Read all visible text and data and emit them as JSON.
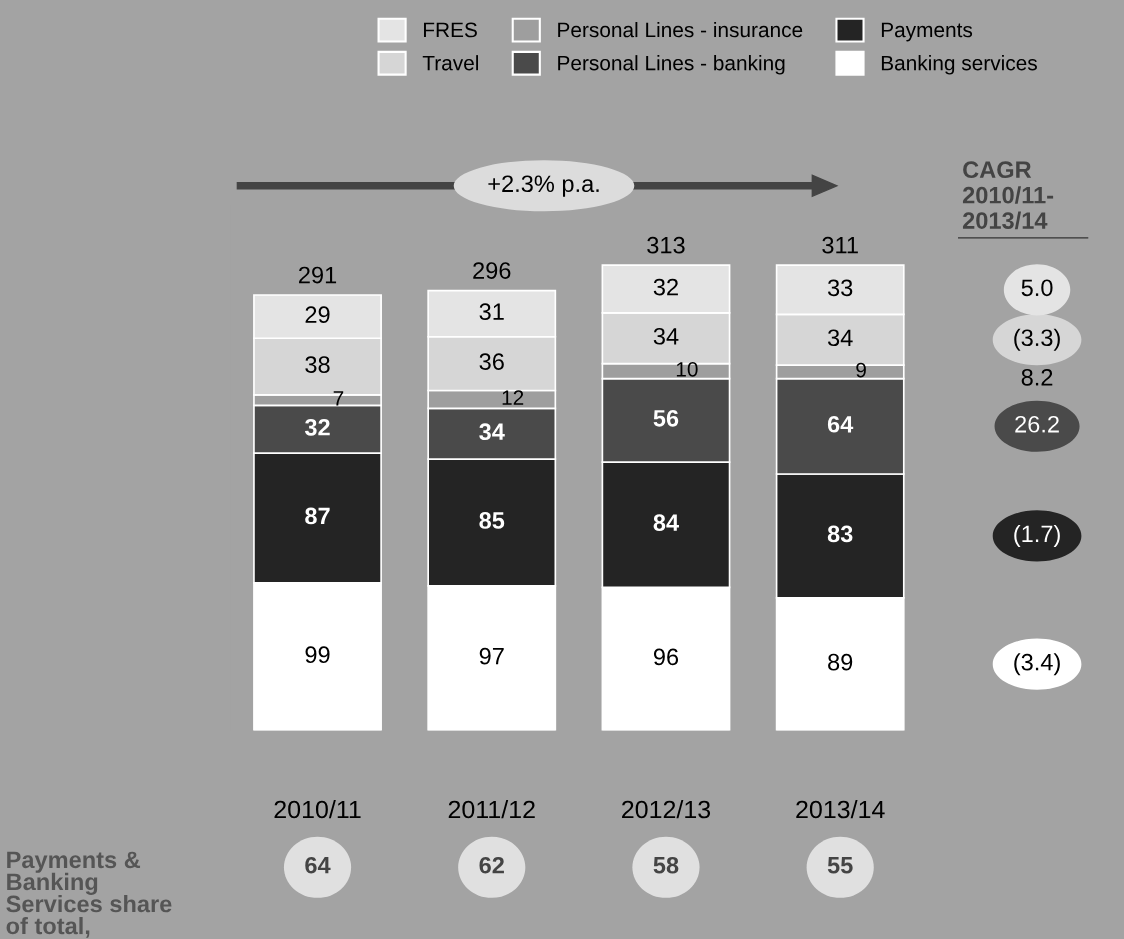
{
  "chart_data": {
    "type": "bar",
    "stacked": true,
    "categories": [
      "2010/11",
      "2011/12",
      "2012/13",
      "2013/14"
    ],
    "series": [
      {
        "name": "Banking services",
        "color": "#ffffff",
        "values": [
          99,
          97,
          96,
          89
        ]
      },
      {
        "name": "Payments",
        "color": "#242424",
        "values": [
          87,
          85,
          84,
          83
        ]
      },
      {
        "name": "Personal Lines - banking",
        "color": "#4a4a4a",
        "values": [
          32,
          34,
          56,
          64
        ]
      },
      {
        "name": "Personal Lines - insurance",
        "color": "#9e9e9e",
        "values": [
          7,
          12,
          10,
          9
        ]
      },
      {
        "name": "Travel",
        "color": "#d6d6d6",
        "values": [
          38,
          36,
          34,
          34
        ]
      },
      {
        "name": "FRES",
        "color": "#e4e4e4",
        "values": [
          29,
          31,
          32,
          33
        ]
      }
    ],
    "data_labels": true,
    "totals": [
      "291",
      "296",
      "313",
      "311"
    ],
    "legend": "top",
    "tick_labels": "x",
    "grid": false,
    "annotations": [
      "+2.3% p.a.",
      "CAGR\n2010/11-\n2013/14",
      "(3.4)",
      "(1.7)",
      "26.2",
      "8.2",
      "(3.3)",
      "5.0",
      "Payments &\nBanking\nServices share\nof total,",
      "64",
      "62",
      "58",
      "55"
    ]
  }
}
